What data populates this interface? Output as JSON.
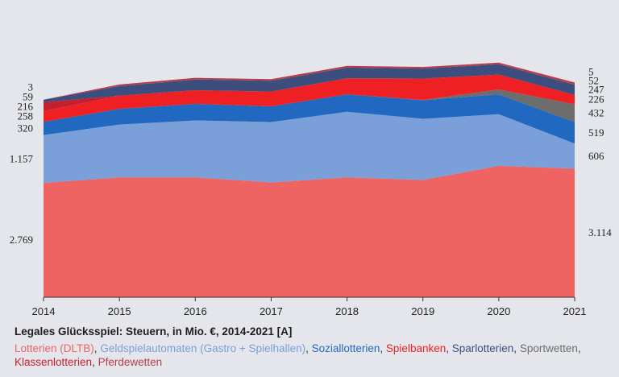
{
  "chart_data": {
    "type": "area",
    "stacked": true,
    "title": "Legales Glücksspiel: Steuern, in Mio. €, 2014-2021 [A]",
    "x": [
      "2014",
      "2015",
      "2016",
      "2017",
      "2018",
      "2019",
      "2020",
      "2021"
    ],
    "series": [
      {
        "name": "Lotterien (DLTB)",
        "color": "#ef6363",
        "values": [
          2769,
          2900,
          2900,
          2780,
          2900,
          2840,
          3180,
          3114
        ],
        "label_2014": "2.769",
        "label_2021": "3.114"
      },
      {
        "name": "Geldspielautomaten (Gastro + Spielhallen)",
        "color": "#7b9fd8",
        "values": [
          1157,
          1280,
          1380,
          1460,
          1590,
          1480,
          1250,
          606
        ],
        "label_2014": "1.157",
        "label_2021": "606"
      },
      {
        "name": "Soziallotterien",
        "color": "#2068c0",
        "values": [
          320,
          380,
          400,
          380,
          420,
          450,
          480,
          519
        ],
        "label_2014": "320",
        "label_2021": "519"
      },
      {
        "name": "Sportwetten",
        "color": "#6d6d6d",
        "values": [
          0,
          0,
          0,
          0,
          0,
          5,
          120,
          432
        ],
        "label_2014": "",
        "label_2021": "432"
      },
      {
        "name": "Spielbanken",
        "color": "#ee2024",
        "values": [
          258,
          320,
          330,
          360,
          390,
          520,
          360,
          226
        ],
        "label_2014": "258",
        "label_2021": "226"
      },
      {
        "name": "Klassenlotterien",
        "color": "#c41f2c",
        "values": [
          216,
          0,
          0,
          0,
          0,
          0,
          0,
          0
        ],
        "label_2014": "216",
        "label_2021": ""
      },
      {
        "name": "Sparlotterien",
        "color": "#3b4e7e",
        "values": [
          59,
          230,
          260,
          260,
          260,
          240,
          250,
          247
        ],
        "label_2014": "59",
        "label_2021": "247"
      },
      {
        "name": "Pferdewetten",
        "color": "#b83d4a",
        "values": [
          3,
          40,
          40,
          40,
          40,
          40,
          40,
          52
        ],
        "label_2014": "3",
        "label_2021": "52"
      },
      {
        "name": "",
        "color": "#e75a5a",
        "values": [
          0,
          0,
          0,
          0,
          0,
          0,
          0,
          5
        ],
        "label_2014": "",
        "label_2021": "5"
      }
    ],
    "ylim": [
      0,
      7000
    ],
    "grid": false,
    "legend": "bottom"
  },
  "legend_separator": ", ",
  "legend_order": [
    0,
    1,
    2,
    4,
    6,
    3,
    5,
    7
  ]
}
